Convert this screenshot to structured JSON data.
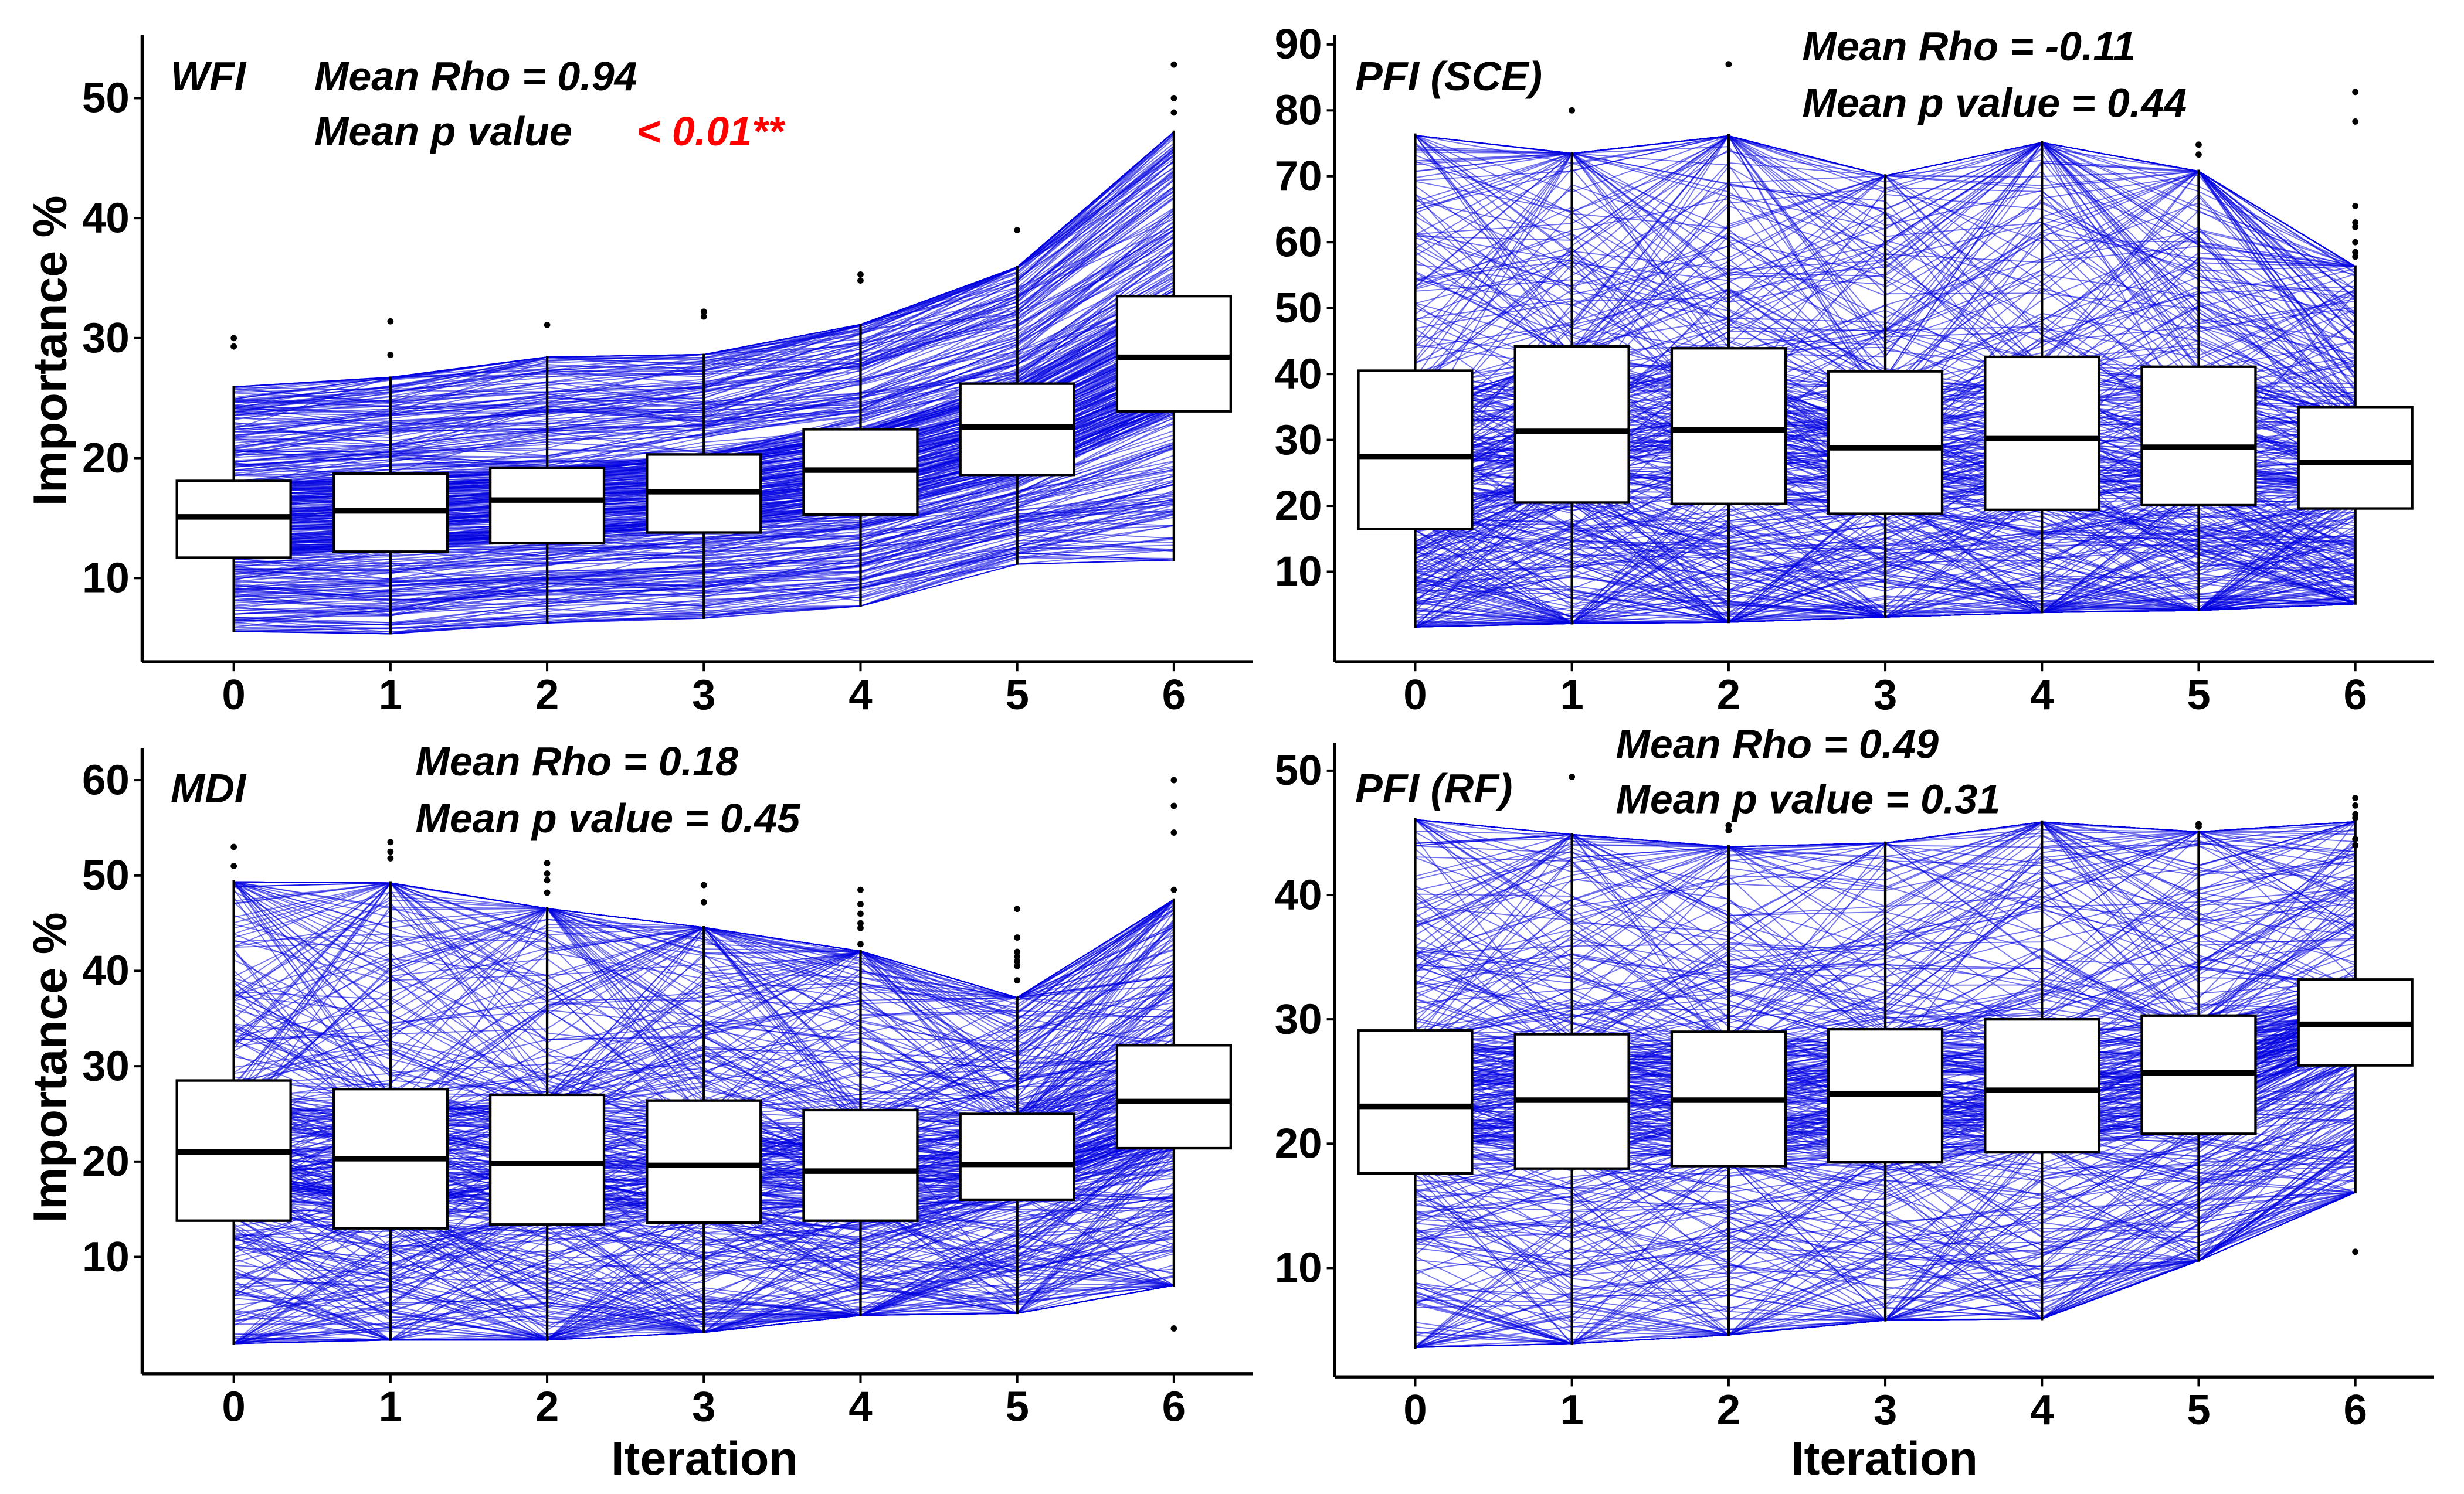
{
  "chart_data": [
    {
      "type": "box",
      "panel_label": "WFI",
      "rho_text": "Mean Rho = 0.94",
      "p_label": "Mean p value",
      "p_value_text": "< 0.01**",
      "p_value_color": "#ff0000",
      "ylabel": "Importance %",
      "xlabel": "",
      "categories": [
        "0",
        "1",
        "2",
        "3",
        "4",
        "5",
        "6"
      ],
      "yticks": [
        "10",
        "20",
        "30",
        "40",
        "50"
      ],
      "ylim": [
        3,
        55
      ],
      "line_color": "#0000e0",
      "trend_noise": 0.06,
      "boxes": [
        {
          "min": 5.5,
          "q1": 11.7,
          "median": 15.1,
          "q3": 18.1,
          "max": 26.0,
          "outliers": [
            29.3,
            30.0
          ]
        },
        {
          "min": 5.3,
          "q1": 12.2,
          "median": 15.6,
          "q3": 18.7,
          "max": 26.8,
          "outliers": [
            28.6,
            31.4
          ]
        },
        {
          "min": 6.2,
          "q1": 12.9,
          "median": 16.5,
          "q3": 19.2,
          "max": 28.5,
          "outliers": [
            31.1
          ]
        },
        {
          "min": 6.6,
          "q1": 13.8,
          "median": 17.2,
          "q3": 20.3,
          "max": 28.7,
          "outliers": [
            31.8,
            32.2
          ]
        },
        {
          "min": 7.6,
          "q1": 15.3,
          "median": 19.0,
          "q3": 22.4,
          "max": 31.2,
          "outliers": [
            34.8,
            35.3
          ]
        },
        {
          "min": 11.1,
          "q1": 18.6,
          "median": 22.6,
          "q3": 26.2,
          "max": 36.0,
          "outliers": [
            39.0
          ]
        },
        {
          "min": 11.4,
          "q1": 23.9,
          "median": 28.4,
          "q3": 33.5,
          "max": 47.3,
          "outliers": [
            48.8,
            50.0,
            52.8
          ]
        }
      ]
    },
    {
      "type": "box",
      "panel_label": "PFI (SCE)",
      "rho_text": "Mean Rho = -0.11",
      "p_label": "Mean p value  = 0.44",
      "p_value_text": "",
      "ylabel": "",
      "xlabel": "",
      "categories": [
        "0",
        "1",
        "2",
        "3",
        "4",
        "5",
        "6"
      ],
      "yticks": [
        "10",
        "20",
        "30",
        "40",
        "50",
        "60",
        "70",
        "80",
        "90"
      ],
      "ylim": [
        -0.5,
        91
      ],
      "line_color": "#0000e0",
      "trend_noise": 0.28,
      "boxes": [
        {
          "min": 1.5,
          "q1": 16.5,
          "median": 27.5,
          "q3": 40.5,
          "max": 76.5,
          "outliers": []
        },
        {
          "min": 2.0,
          "q1": 20.5,
          "median": 31.3,
          "q3": 44.2,
          "max": 73.7,
          "outliers": [
            80.0
          ]
        },
        {
          "min": 2.2,
          "q1": 20.3,
          "median": 31.5,
          "q3": 43.9,
          "max": 76.4,
          "outliers": [
            87.0
          ]
        },
        {
          "min": 3.0,
          "q1": 18.8,
          "median": 28.8,
          "q3": 40.4,
          "max": 70.3,
          "outliers": []
        },
        {
          "min": 3.7,
          "q1": 19.4,
          "median": 30.2,
          "q3": 42.6,
          "max": 75.4,
          "outliers": []
        },
        {
          "min": 4.0,
          "q1": 20.1,
          "median": 28.9,
          "q3": 41.1,
          "max": 71.0,
          "outliers": [
            73.3,
            74.8
          ]
        },
        {
          "min": 5.0,
          "q1": 19.6,
          "median": 26.6,
          "q3": 35.0,
          "max": 56.5,
          "outliers": [
            57.8,
            58.5,
            60.0,
            62.3,
            63.0,
            65.5,
            78.3,
            82.8
          ]
        }
      ]
    },
    {
      "type": "box",
      "panel_label": "MDI",
      "rho_text": "Mean Rho = 0.18",
      "p_label": "Mean p value  = 0.45",
      "p_value_text": "",
      "ylabel": "Importance %",
      "xlabel": "Iteration",
      "categories": [
        "0",
        "1",
        "2",
        "3",
        "4",
        "5",
        "6"
      ],
      "yticks": [
        "10",
        "20",
        "30",
        "40",
        "50",
        "60"
      ],
      "ylim": [
        -1,
        63
      ],
      "line_color": "#0000e0",
      "trend_noise": 0.25,
      "boxes": [
        {
          "min": 0.8,
          "q1": 13.8,
          "median": 21.0,
          "q3": 28.5,
          "max": 49.5,
          "outliers": [
            51.0,
            53.0
          ]
        },
        {
          "min": 1.2,
          "q1": 13.0,
          "median": 20.3,
          "q3": 27.6,
          "max": 49.4,
          "outliers": [
            51.8,
            52.5,
            53.5
          ]
        },
        {
          "min": 1.2,
          "q1": 13.4,
          "median": 19.8,
          "q3": 27.0,
          "max": 46.7,
          "outliers": [
            48.2,
            49.5,
            50.2,
            51.3
          ]
        },
        {
          "min": 2.0,
          "q1": 13.6,
          "median": 19.6,
          "q3": 26.4,
          "max": 44.7,
          "outliers": [
            47.2,
            49.0
          ]
        },
        {
          "min": 3.8,
          "q1": 13.8,
          "median": 19.0,
          "q3": 25.4,
          "max": 42.2,
          "outliers": [
            42.8,
            44.5,
            45.0,
            46.0,
            47.0,
            48.5
          ]
        },
        {
          "min": 4.0,
          "q1": 16.0,
          "median": 19.7,
          "q3": 25.0,
          "max": 37.3,
          "outliers": [
            39.0,
            40.5,
            41.0,
            41.5,
            42.0,
            43.5,
            46.5
          ]
        },
        {
          "min": 6.9,
          "q1": 21.4,
          "median": 26.3,
          "q3": 32.2,
          "max": 47.6,
          "outliers": [
            2.5,
            48.5,
            54.5,
            57.3,
            60.0
          ]
        }
      ]
    },
    {
      "type": "box",
      "panel_label": "PFI (RF)",
      "rho_text": "Mean Rho = 0.49",
      "p_label": "Mean p value  = 0.31",
      "p_value_text": "",
      "ylabel": "",
      "xlabel": "Iteration",
      "categories": [
        "0",
        "1",
        "2",
        "3",
        "4",
        "5",
        "6"
      ],
      "yticks": [
        "10",
        "20",
        "30",
        "40",
        "50"
      ],
      "ylim": [
        1,
        52
      ],
      "line_color": "#0000e0",
      "trend_noise": 0.2,
      "boxes": [
        {
          "min": 3.5,
          "q1": 17.6,
          "median": 23.0,
          "q3": 29.1,
          "max": 46.2,
          "outliers": []
        },
        {
          "min": 3.8,
          "q1": 18.0,
          "median": 23.5,
          "q3": 28.8,
          "max": 45.0,
          "outliers": [
            49.5
          ]
        },
        {
          "min": 4.5,
          "q1": 18.2,
          "median": 23.5,
          "q3": 29.0,
          "max": 44.0,
          "outliers": [
            45.2,
            45.6
          ]
        },
        {
          "min": 5.7,
          "q1": 18.5,
          "median": 24.0,
          "q3": 29.2,
          "max": 44.3,
          "outliers": []
        },
        {
          "min": 5.8,
          "q1": 19.3,
          "median": 24.3,
          "q3": 30.0,
          "max": 46.0,
          "outliers": []
        },
        {
          "min": 10.5,
          "q1": 20.8,
          "median": 25.7,
          "q3": 30.3,
          "max": 45.2,
          "outliers": [
            45.5,
            45.7
          ]
        },
        {
          "min": 16.0,
          "q1": 26.3,
          "median": 29.6,
          "q3": 33.2,
          "max": 46.0,
          "outliers": [
            11.3,
            44.0,
            44.5,
            46.2,
            46.5,
            47.2,
            47.8
          ]
        }
      ]
    }
  ]
}
